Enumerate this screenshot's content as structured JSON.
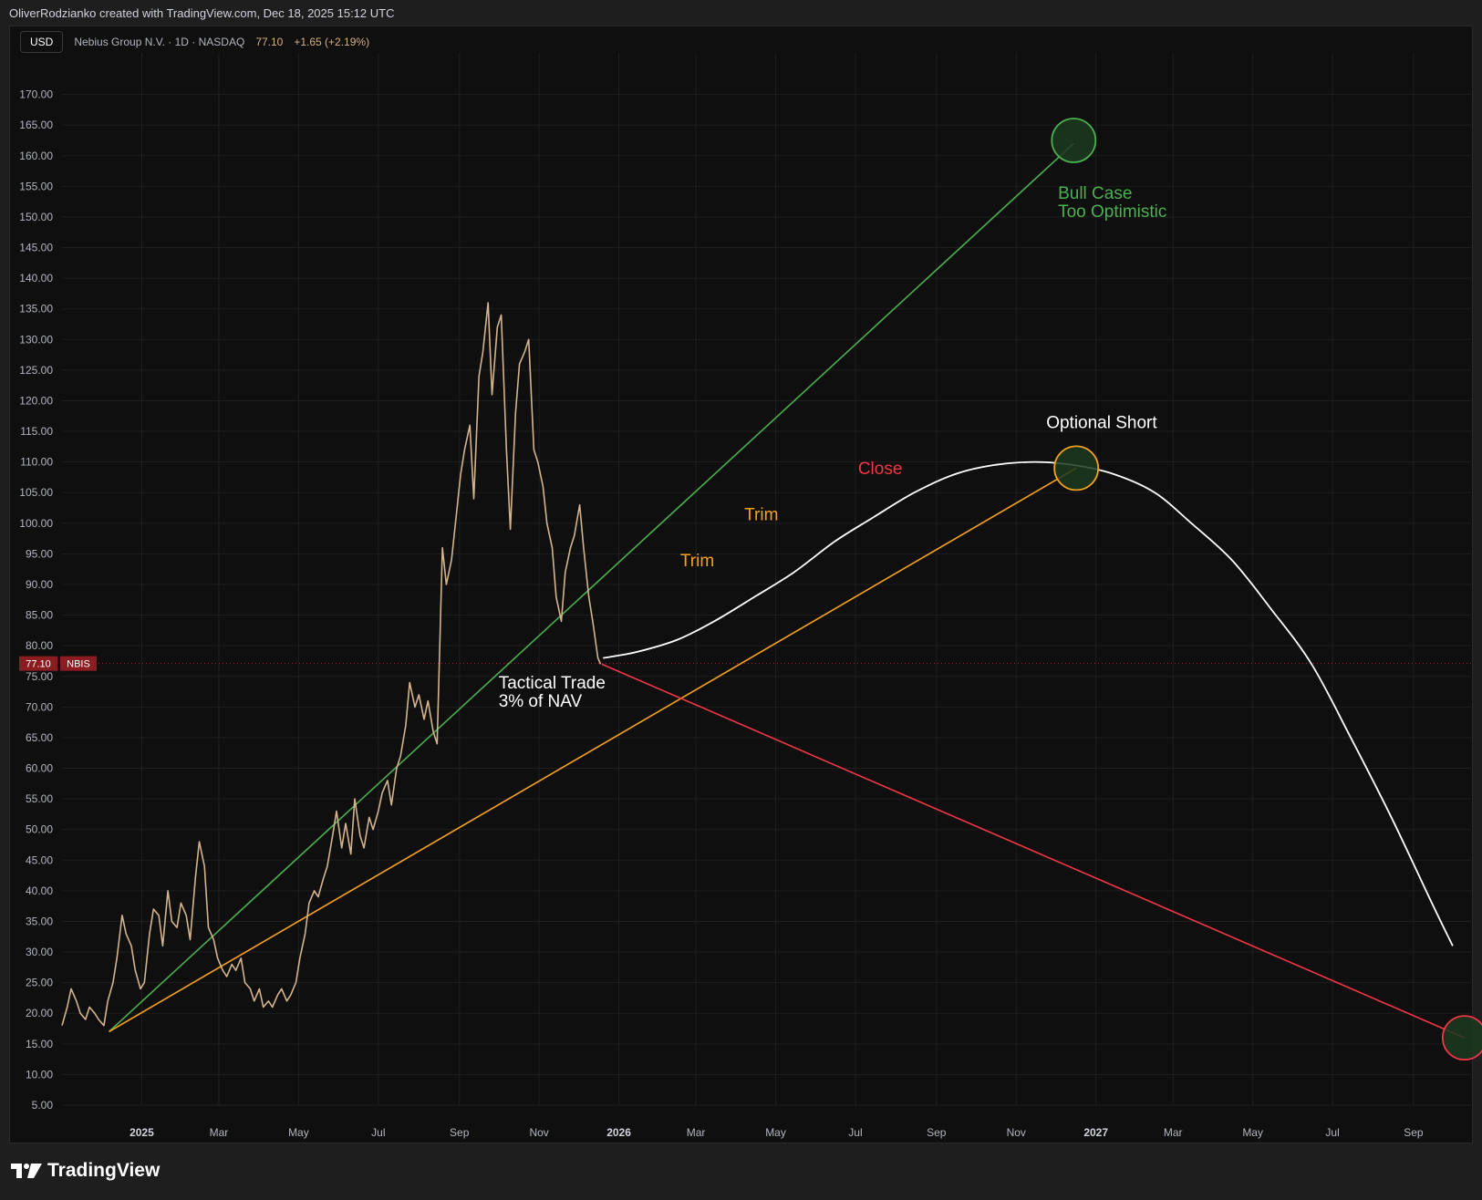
{
  "credit": "OliverRodzianko created with TradingView.com, Dec 18, 2025 15:12 UTC",
  "header": {
    "currency": "USD",
    "symbol": "Nebius Group N.V. · 1D · NASDAQ",
    "last": "77.10",
    "change": "+1.65 (+2.19%)"
  },
  "footer": {
    "brand": "TradingView",
    "logo_icon": "tradingview-logo-icon"
  },
  "colors": {
    "price": "#d4b48c",
    "green": "#4caf50",
    "orange": "#f7a21b",
    "red": "#f23645",
    "white": "#ffffff",
    "badge": "#8b1c22"
  },
  "chart_data": {
    "type": "line",
    "symbol": "NBIS",
    "last_price_label": "77.10",
    "ylim": [
      5,
      175
    ],
    "y_ticks": [
      5,
      10,
      15,
      20,
      25,
      30,
      35,
      40,
      45,
      50,
      55,
      60,
      65,
      70,
      75,
      80,
      85,
      90,
      95,
      100,
      105,
      110,
      115,
      120,
      125,
      130,
      135,
      140,
      145,
      150,
      155,
      160,
      165,
      170
    ],
    "y_tick_labels": [
      "5.00",
      "10.00",
      "15.00",
      "20.00",
      "25.00",
      "30.00",
      "35.00",
      "40.00",
      "45.00",
      "50.00",
      "55.00",
      "60.00",
      "65.00",
      "70.00",
      "75.00",
      "80.00",
      "85.00",
      "90.00",
      "95.00",
      "100.00",
      "105.00",
      "110.00",
      "115.00",
      "120.00",
      "125.00",
      "130.00",
      "135.00",
      "140.00",
      "145.00",
      "150.00",
      "155.00",
      "160.00",
      "165.00",
      "170.00"
    ],
    "xlim": [
      "2024-11-01",
      "2027-10-15"
    ],
    "x_ticks": [
      {
        "date": "2025-01-01",
        "label": "2025",
        "bold": true
      },
      {
        "date": "2025-03-01",
        "label": "Mar"
      },
      {
        "date": "2025-05-01",
        "label": "May"
      },
      {
        "date": "2025-07-01",
        "label": "Jul"
      },
      {
        "date": "2025-09-01",
        "label": "Sep"
      },
      {
        "date": "2025-11-01",
        "label": "Nov"
      },
      {
        "date": "2026-01-01",
        "label": "2026",
        "bold": true
      },
      {
        "date": "2026-03-01",
        "label": "Mar"
      },
      {
        "date": "2026-05-01",
        "label": "May"
      },
      {
        "date": "2026-07-01",
        "label": "Jul"
      },
      {
        "date": "2026-09-01",
        "label": "Sep"
      },
      {
        "date": "2026-11-01",
        "label": "Nov"
      },
      {
        "date": "2027-01-01",
        "label": "2027",
        "bold": true
      },
      {
        "date": "2027-03-01",
        "label": "Mar"
      },
      {
        "date": "2027-05-01",
        "label": "May"
      },
      {
        "date": "2027-07-01",
        "label": "Jul"
      },
      {
        "date": "2027-09-01",
        "label": "Sep"
      }
    ],
    "series": [
      {
        "name": "NBIS",
        "x": [
          "2024-11-01",
          "2024-11-05",
          "2024-11-08",
          "2024-11-12",
          "2024-11-15",
          "2024-11-19",
          "2024-11-22",
          "2024-11-26",
          "2024-11-29",
          "2024-12-03",
          "2024-12-06",
          "2024-12-10",
          "2024-12-13",
          "2024-12-17",
          "2024-12-20",
          "2024-12-24",
          "2024-12-27",
          "2024-12-31",
          "2025-01-03",
          "2025-01-07",
          "2025-01-10",
          "2025-01-14",
          "2025-01-17",
          "2025-01-21",
          "2025-01-24",
          "2025-01-28",
          "2025-01-31",
          "2025-02-04",
          "2025-02-07",
          "2025-02-11",
          "2025-02-14",
          "2025-02-18",
          "2025-02-21",
          "2025-02-25",
          "2025-02-28",
          "2025-03-04",
          "2025-03-07",
          "2025-03-11",
          "2025-03-14",
          "2025-03-18",
          "2025-03-21",
          "2025-03-25",
          "2025-03-28",
          "2025-04-01",
          "2025-04-04",
          "2025-04-08",
          "2025-04-11",
          "2025-04-15",
          "2025-04-18",
          "2025-04-22",
          "2025-04-25",
          "2025-04-29",
          "2025-05-02",
          "2025-05-06",
          "2025-05-09",
          "2025-05-13",
          "2025-05-16",
          "2025-05-20",
          "2025-05-23",
          "2025-05-27",
          "2025-05-30",
          "2025-06-03",
          "2025-06-06",
          "2025-06-10",
          "2025-06-13",
          "2025-06-17",
          "2025-06-20",
          "2025-06-24",
          "2025-06-27",
          "2025-07-01",
          "2025-07-04",
          "2025-07-08",
          "2025-07-11",
          "2025-07-15",
          "2025-07-18",
          "2025-07-22",
          "2025-07-25",
          "2025-07-29",
          "2025-08-01",
          "2025-08-05",
          "2025-08-08",
          "2025-08-12",
          "2025-08-15",
          "2025-08-19",
          "2025-08-22",
          "2025-08-26",
          "2025-08-29",
          "2025-09-02",
          "2025-09-05",
          "2025-09-09",
          "2025-09-12",
          "2025-09-16",
          "2025-09-19",
          "2025-09-23",
          "2025-09-26",
          "2025-09-30",
          "2025-10-03",
          "2025-10-07",
          "2025-10-10",
          "2025-10-14",
          "2025-10-17",
          "2025-10-21",
          "2025-10-24",
          "2025-10-28",
          "2025-10-31",
          "2025-11-04",
          "2025-11-07",
          "2025-11-11",
          "2025-11-14",
          "2025-11-18",
          "2025-11-21",
          "2025-11-25",
          "2025-11-28",
          "2025-12-02",
          "2025-12-05",
          "2025-12-09",
          "2025-12-12",
          "2025-12-16",
          "2025-12-18"
        ],
        "y": [
          18,
          21,
          24,
          22,
          20,
          19,
          21,
          20,
          19,
          18,
          22,
          25,
          29,
          36,
          33,
          31,
          27,
          24,
          25,
          33,
          37,
          36,
          31,
          40,
          35,
          34,
          38,
          36,
          32,
          42,
          48,
          44,
          34,
          32,
          29,
          27,
          26,
          28,
          27,
          29,
          25,
          24,
          22,
          24,
          21,
          22,
          21,
          23,
          24,
          22,
          23,
          25,
          29,
          33,
          38,
          40,
          39,
          42,
          44,
          49,
          53,
          47,
          51,
          46,
          55,
          49,
          47,
          52,
          50,
          53,
          56,
          58,
          54,
          60,
          62,
          67,
          74,
          70,
          72,
          68,
          71,
          66,
          64,
          96,
          90,
          94,
          100,
          108,
          112,
          116,
          104,
          124,
          128,
          136,
          121,
          132,
          134,
          112,
          99,
          118,
          126,
          128,
          130,
          112,
          110,
          106,
          100,
          96,
          88,
          84,
          92,
          96,
          98,
          103,
          96,
          88,
          84,
          78,
          77
        ]
      }
    ],
    "projection": {
      "name": "Projection",
      "x": [
        "2025-12-20",
        "2026-01-15",
        "2026-02-15",
        "2026-03-15",
        "2026-04-15",
        "2026-05-15",
        "2026-06-15",
        "2026-07-15",
        "2026-08-15",
        "2026-09-15",
        "2026-10-15",
        "2026-11-15",
        "2026-12-15",
        "2027-01-15",
        "2027-02-15",
        "2027-03-15",
        "2027-04-15",
        "2027-05-15",
        "2027-06-15",
        "2027-07-15",
        "2027-08-15",
        "2027-09-15",
        "2027-10-01"
      ],
      "y": [
        78,
        79,
        81,
        84,
        88,
        92,
        97,
        101,
        105,
        108,
        109.5,
        110,
        109.5,
        108,
        105,
        100,
        94,
        86,
        77,
        65,
        52,
        38,
        31
      ]
    },
    "trendlines": [
      {
        "color": "green",
        "from": {
          "x": "2024-12-07",
          "y": 17
        },
        "to": {
          "x": "2026-12-15",
          "y": 162
        }
      },
      {
        "color": "orange",
        "from": {
          "x": "2024-12-07",
          "y": 17
        },
        "to": {
          "x": "2026-12-17",
          "y": 109
        }
      },
      {
        "color": "red",
        "from": {
          "x": "2025-12-19",
          "y": 77
        },
        "to": {
          "x": "2027-10-10",
          "y": 16
        }
      }
    ],
    "targets": [
      {
        "color": "green",
        "x": "2026-12-15",
        "y": 162.5
      },
      {
        "color": "orange",
        "x": "2026-12-17",
        "y": 109
      },
      {
        "color": "red",
        "x": "2027-10-10",
        "y": 16
      }
    ],
    "annotations": [
      {
        "color": "green",
        "x": "2026-12-03",
        "y": 153,
        "lines": [
          "Bull Case",
          "Too Optimistic"
        ]
      },
      {
        "color": "white",
        "x": "2026-11-24",
        "y": 115.5,
        "lines": [
          "Optional Short"
        ]
      },
      {
        "color": "red",
        "x": "2026-07-03",
        "y": 108,
        "lines": [
          "Close"
        ]
      },
      {
        "color": "orange",
        "x": "2026-04-07",
        "y": 100.5,
        "lines": [
          "Trim"
        ]
      },
      {
        "color": "orange",
        "x": "2026-02-17",
        "y": 93,
        "lines": [
          "Trim"
        ]
      },
      {
        "color": "white",
        "x": "2025-10-01",
        "y": 73,
        "lines": [
          "Tactical Trade",
          "3% of NAV"
        ]
      }
    ]
  }
}
